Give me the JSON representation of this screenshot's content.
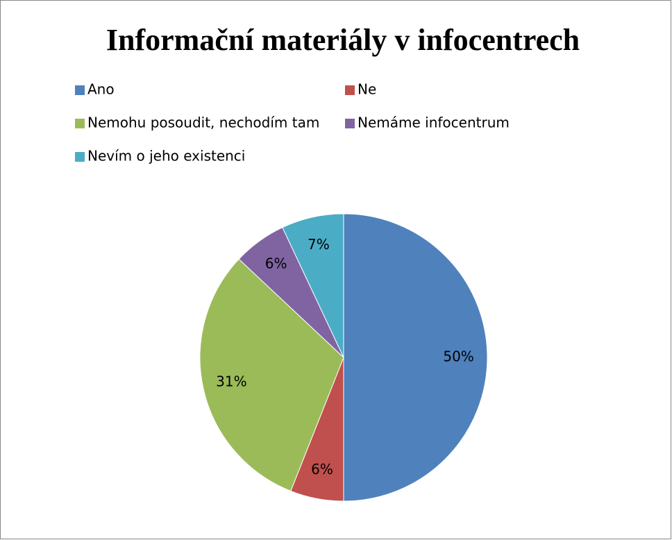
{
  "chart_data": {
    "type": "pie",
    "title": "Informační materiály v infocentrech",
    "categories": [
      "Ano",
      "Ne",
      "Nemohu posoudit, nechodím tam",
      "Nemáme infocentrum",
      "Nevím o jeho existenci"
    ],
    "values": [
      50,
      6,
      31,
      6,
      7
    ],
    "value_labels": [
      "50%",
      "6%",
      "31%",
      "6%",
      "7%"
    ],
    "colors": [
      "#4f81bd",
      "#c0504d",
      "#9bbb59",
      "#8064a2",
      "#4bacc6"
    ],
    "legend": "top"
  }
}
